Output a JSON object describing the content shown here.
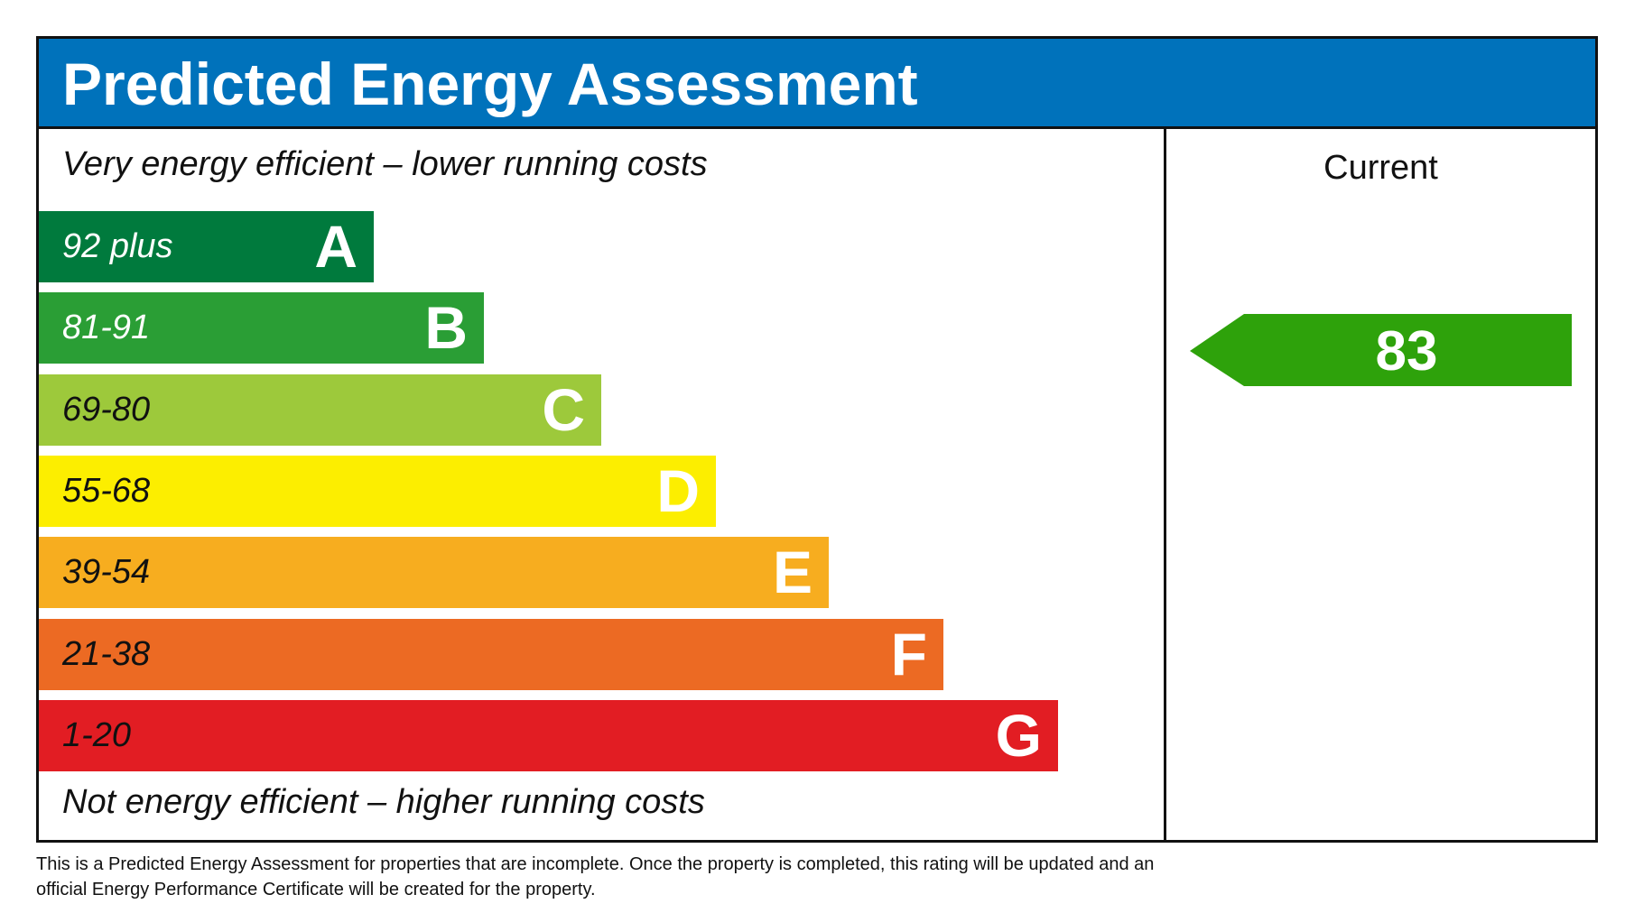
{
  "title": "Predicted Energy Assessment",
  "top_caption": "Very energy efficient – lower running costs",
  "bottom_caption": "Not energy efficient – higher running costs",
  "column_header": "Current",
  "chart_data": {
    "type": "bar",
    "bands": [
      {
        "range": "92 plus",
        "letter": "A",
        "color": "#007a3d",
        "text_color": "#ffffff"
      },
      {
        "range": "81-91",
        "letter": "B",
        "color": "#2a9e35",
        "text_color": "#ffffff"
      },
      {
        "range": "69-80",
        "letter": "C",
        "color": "#9dc93b",
        "text_color": "#111111"
      },
      {
        "range": "55-68",
        "letter": "D",
        "color": "#fcee00",
        "text_color": "#111111"
      },
      {
        "range": "39-54",
        "letter": "E",
        "color": "#f7ad1f",
        "text_color": "#111111"
      },
      {
        "range": "21-38",
        "letter": "F",
        "color": "#ec6a23",
        "text_color": "#111111"
      },
      {
        "range": "1-20",
        "letter": "G",
        "color": "#e21d23",
        "text_color": "#111111"
      }
    ],
    "current": {
      "value": "83",
      "band": "B",
      "color": "#2ea20b"
    }
  },
  "footer": {
    "line1": "This is a Predicted Energy Assessment for properties that are incomplete. Once the property is completed, this rating will be updated and an",
    "line2": "official Energy Performance Certificate will be created for the property."
  }
}
